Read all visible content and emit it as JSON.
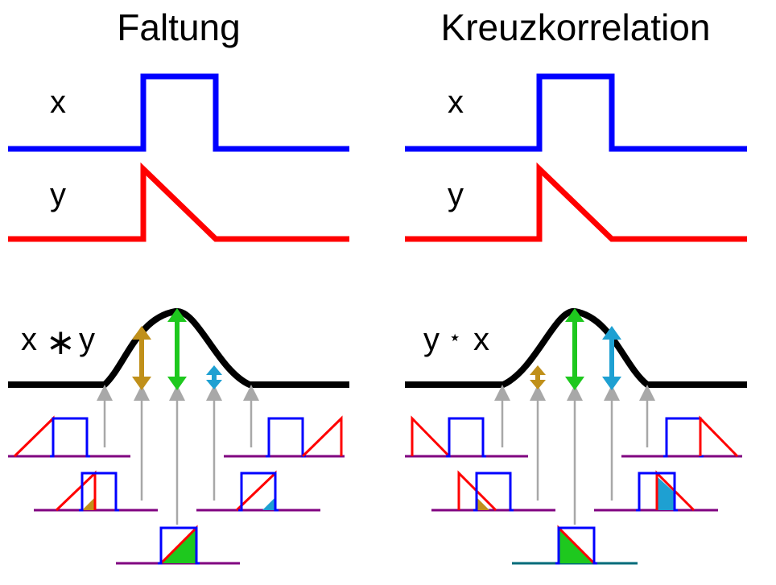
{
  "titles": {
    "left": "Faltung",
    "right": "Kreuzkorrelation"
  },
  "left_labels": {
    "x": "x",
    "y": "y",
    "result_a": "x",
    "result_op": "∗",
    "result_b": "y"
  },
  "right_labels": {
    "x": "x",
    "y": "y",
    "result_a": "y",
    "result_op": "⋆",
    "result_b": "x"
  },
  "colors": {
    "x_signal": "#0000ff",
    "y_signal": "#ff0000",
    "result_curve": "#000000",
    "overlap_left": "#c0901a",
    "overlap_peak": "#1ec81e",
    "overlap_right": "#1ea0d2",
    "sample_arrow": "#a8a8a8",
    "baseline": "#800080",
    "baseline_peak_right": "#006b7a"
  }
}
